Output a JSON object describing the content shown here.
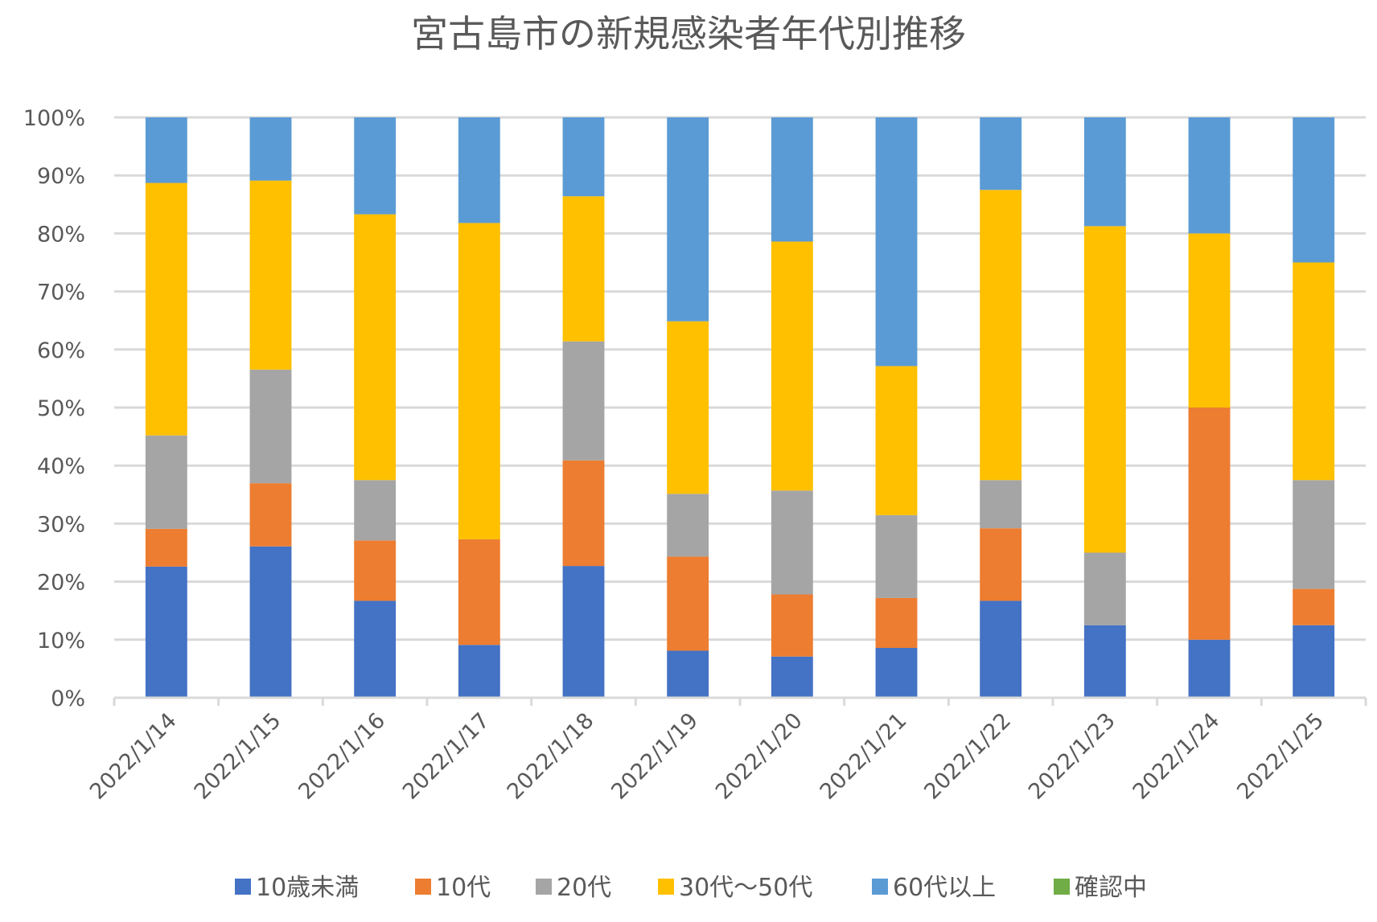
{
  "chart_data": {
    "type": "bar",
    "stacked": true,
    "percent_stacked": true,
    "title": "宮古島市の新規感染者年代別推移",
    "xlabel": "",
    "ylabel": "",
    "ylim": [
      0,
      100
    ],
    "yticks": [
      "0%",
      "10%",
      "20%",
      "30%",
      "40%",
      "50%",
      "60%",
      "70%",
      "80%",
      "90%",
      "100%"
    ],
    "grid": true,
    "legend_position": "bottom",
    "categories": [
      "2022/1/14",
      "2022/1/15",
      "2022/1/16",
      "2022/1/17",
      "2022/1/18",
      "2022/1/19",
      "2022/1/20",
      "2022/1/21",
      "2022/1/22",
      "2022/1/23",
      "2022/1/24",
      "2022/1/25"
    ],
    "series": [
      {
        "name": "10歳未満",
        "color": "#4472c4",
        "values": [
          22.6,
          26.1,
          16.7,
          9.1,
          22.7,
          8.1,
          7.1,
          8.6,
          16.7,
          12.5,
          10.0,
          12.5
        ]
      },
      {
        "name": "10代",
        "color": "#ed7d31",
        "values": [
          6.5,
          10.9,
          10.4,
          18.2,
          18.2,
          16.2,
          10.7,
          8.6,
          12.5,
          0.0,
          40.0,
          6.25
        ]
      },
      {
        "name": "20代",
        "color": "#a5a5a5",
        "values": [
          16.1,
          19.6,
          10.4,
          0.0,
          20.5,
          10.8,
          17.9,
          14.3,
          8.3,
          12.5,
          0.0,
          18.75
        ]
      },
      {
        "name": "30代～50代",
        "color": "#ffc000",
        "values": [
          43.5,
          32.6,
          45.8,
          54.5,
          25.0,
          29.7,
          42.9,
          25.7,
          50.0,
          56.25,
          30.0,
          37.5
        ]
      },
      {
        "name": "60代以上",
        "color": "#5b9bd5",
        "values": [
          11.3,
          10.9,
          16.7,
          18.2,
          13.6,
          35.1,
          21.4,
          42.9,
          12.5,
          18.75,
          20.0,
          25.0
        ]
      },
      {
        "name": "確認中",
        "color": "#70ad47",
        "values": [
          0,
          0,
          0,
          0,
          0,
          0,
          0,
          0,
          0,
          0,
          0,
          0
        ]
      }
    ]
  }
}
